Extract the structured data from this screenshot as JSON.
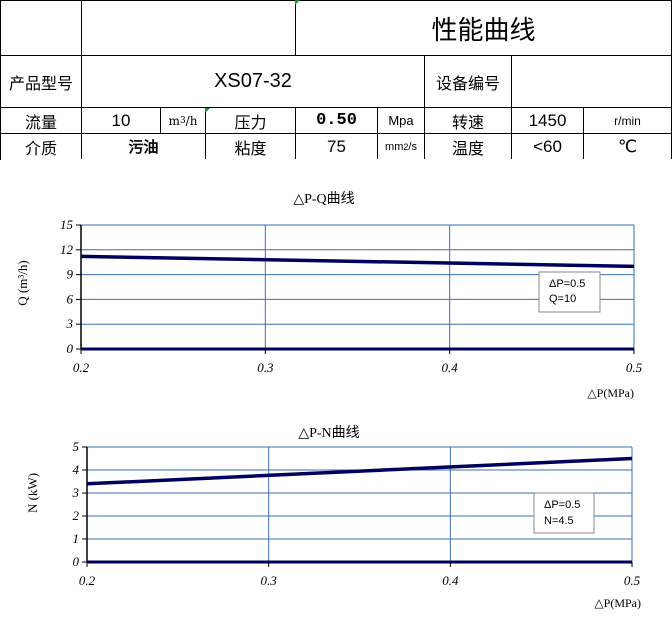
{
  "header": {
    "title": "性能曲线"
  },
  "model_row": {
    "label": "产品型号",
    "value": "XS07-32",
    "equip_label": "设备编号",
    "equip_value": ""
  },
  "row3": {
    "flow_label": "流量",
    "flow_value": "10",
    "flow_unit_base": "m",
    "flow_unit_sup": "3",
    "flow_unit_tail": "/h",
    "pressure_label": "压力",
    "pressure_value": "0.50",
    "pressure_unit": "Mpa",
    "speed_label": "转速",
    "speed_value": "1450",
    "speed_unit": "r/min"
  },
  "row4": {
    "medium_label": "介质",
    "medium_value": "污油",
    "visc_label": "粘度",
    "visc_value": "75",
    "visc_unit_base": "mm",
    "visc_unit_sup": "2",
    "visc_unit_tail": "/s",
    "temp_label": "温度",
    "temp_value": "<60",
    "temp_unit": "℃"
  },
  "chart_data": [
    {
      "type": "line",
      "title": "△P-Q曲线",
      "xlabel": "△P(MPa)",
      "ylabel": "Q (m³/h)",
      "x_ticks": [
        "0.2",
        "0.3",
        "0.4",
        "0.5"
      ],
      "y_ticks": [
        "0",
        "3",
        "6",
        "9",
        "12",
        "15"
      ],
      "xlim": [
        0.2,
        0.5
      ],
      "ylim": [
        0,
        15
      ],
      "grid": true,
      "series": [
        {
          "x": [
            0.2,
            0.5
          ],
          "values": [
            11.2,
            10.0
          ]
        }
      ],
      "annotation": [
        "ΔP=0.5",
        "Q=10"
      ]
    },
    {
      "type": "line",
      "title": "△P-N曲线",
      "xlabel": "△P(MPa)",
      "ylabel": "N  (kW)",
      "x_ticks": [
        "0.2",
        "0.3",
        "0.4",
        "0.5"
      ],
      "y_ticks": [
        "0",
        "1",
        "2",
        "3",
        "4",
        "5"
      ],
      "xlim": [
        0.2,
        0.5
      ],
      "ylim": [
        0,
        5
      ],
      "grid": true,
      "series": [
        {
          "x": [
            0.2,
            0.5
          ],
          "values": [
            3.4,
            4.5
          ]
        }
      ],
      "annotation": [
        "ΔP=0.5",
        "N=4.5"
      ]
    }
  ],
  "colors": {
    "line": "#00005c",
    "grid": "#3b6fb6",
    "border": "#000000"
  }
}
